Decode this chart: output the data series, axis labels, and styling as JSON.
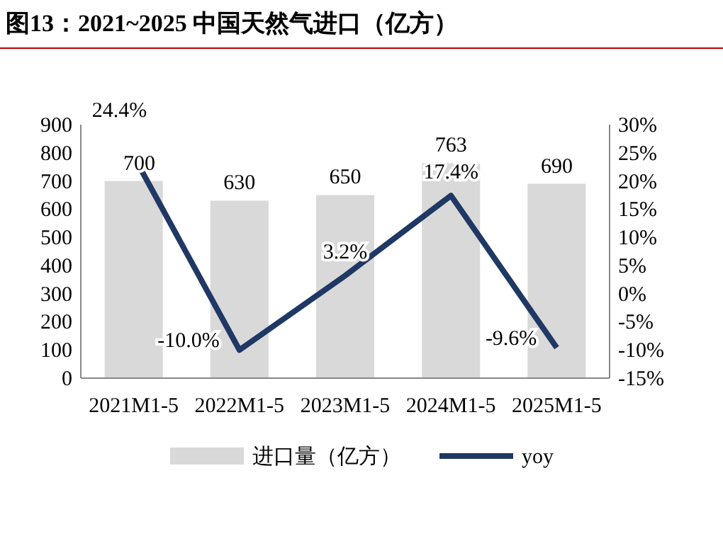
{
  "chart_data": {
    "type": "bar",
    "title": "图13：2021~2025 中国天然气进口（亿方）",
    "categories": [
      "2021M1-5",
      "2022M1-5",
      "2023M1-5",
      "2024M1-5",
      "2025M1-5"
    ],
    "series": [
      {
        "name": "进口量（亿方）",
        "type": "bar",
        "color": "#d9d9d9",
        "values": [
          700,
          630,
          650,
          763,
          690
        ],
        "value_labels": [
          "700",
          "630",
          "650",
          "763",
          "690"
        ]
      },
      {
        "name": "yoy",
        "type": "line",
        "axis": "y2",
        "color": "#1f3864",
        "values": [
          24.4,
          -10.0,
          3.2,
          17.4,
          -9.6
        ],
        "value_labels": [
          "24.4%",
          "-10.0%",
          "3.2%",
          "17.4%",
          "-9.6%"
        ]
      }
    ],
    "ylim": [
      0,
      900
    ],
    "yticks": [
      0,
      100,
      200,
      300,
      400,
      500,
      600,
      700,
      800,
      900
    ],
    "y2lim": [
      -15,
      30
    ],
    "y2ticks": [
      {
        "value": -15,
        "label": "-15%"
      },
      {
        "value": -10,
        "label": "-10%"
      },
      {
        "value": -5,
        "label": "-5%"
      },
      {
        "value": 0,
        "label": "0%"
      },
      {
        "value": 5,
        "label": "5%"
      },
      {
        "value": 10,
        "label": "10%"
      },
      {
        "value": 15,
        "label": "15%"
      },
      {
        "value": 20,
        "label": "20%"
      },
      {
        "value": 25,
        "label": "25%"
      },
      {
        "value": 30,
        "label": "30%"
      }
    ],
    "grid": false,
    "legend": "bottom",
    "marker": "none",
    "line_style": "solid"
  }
}
